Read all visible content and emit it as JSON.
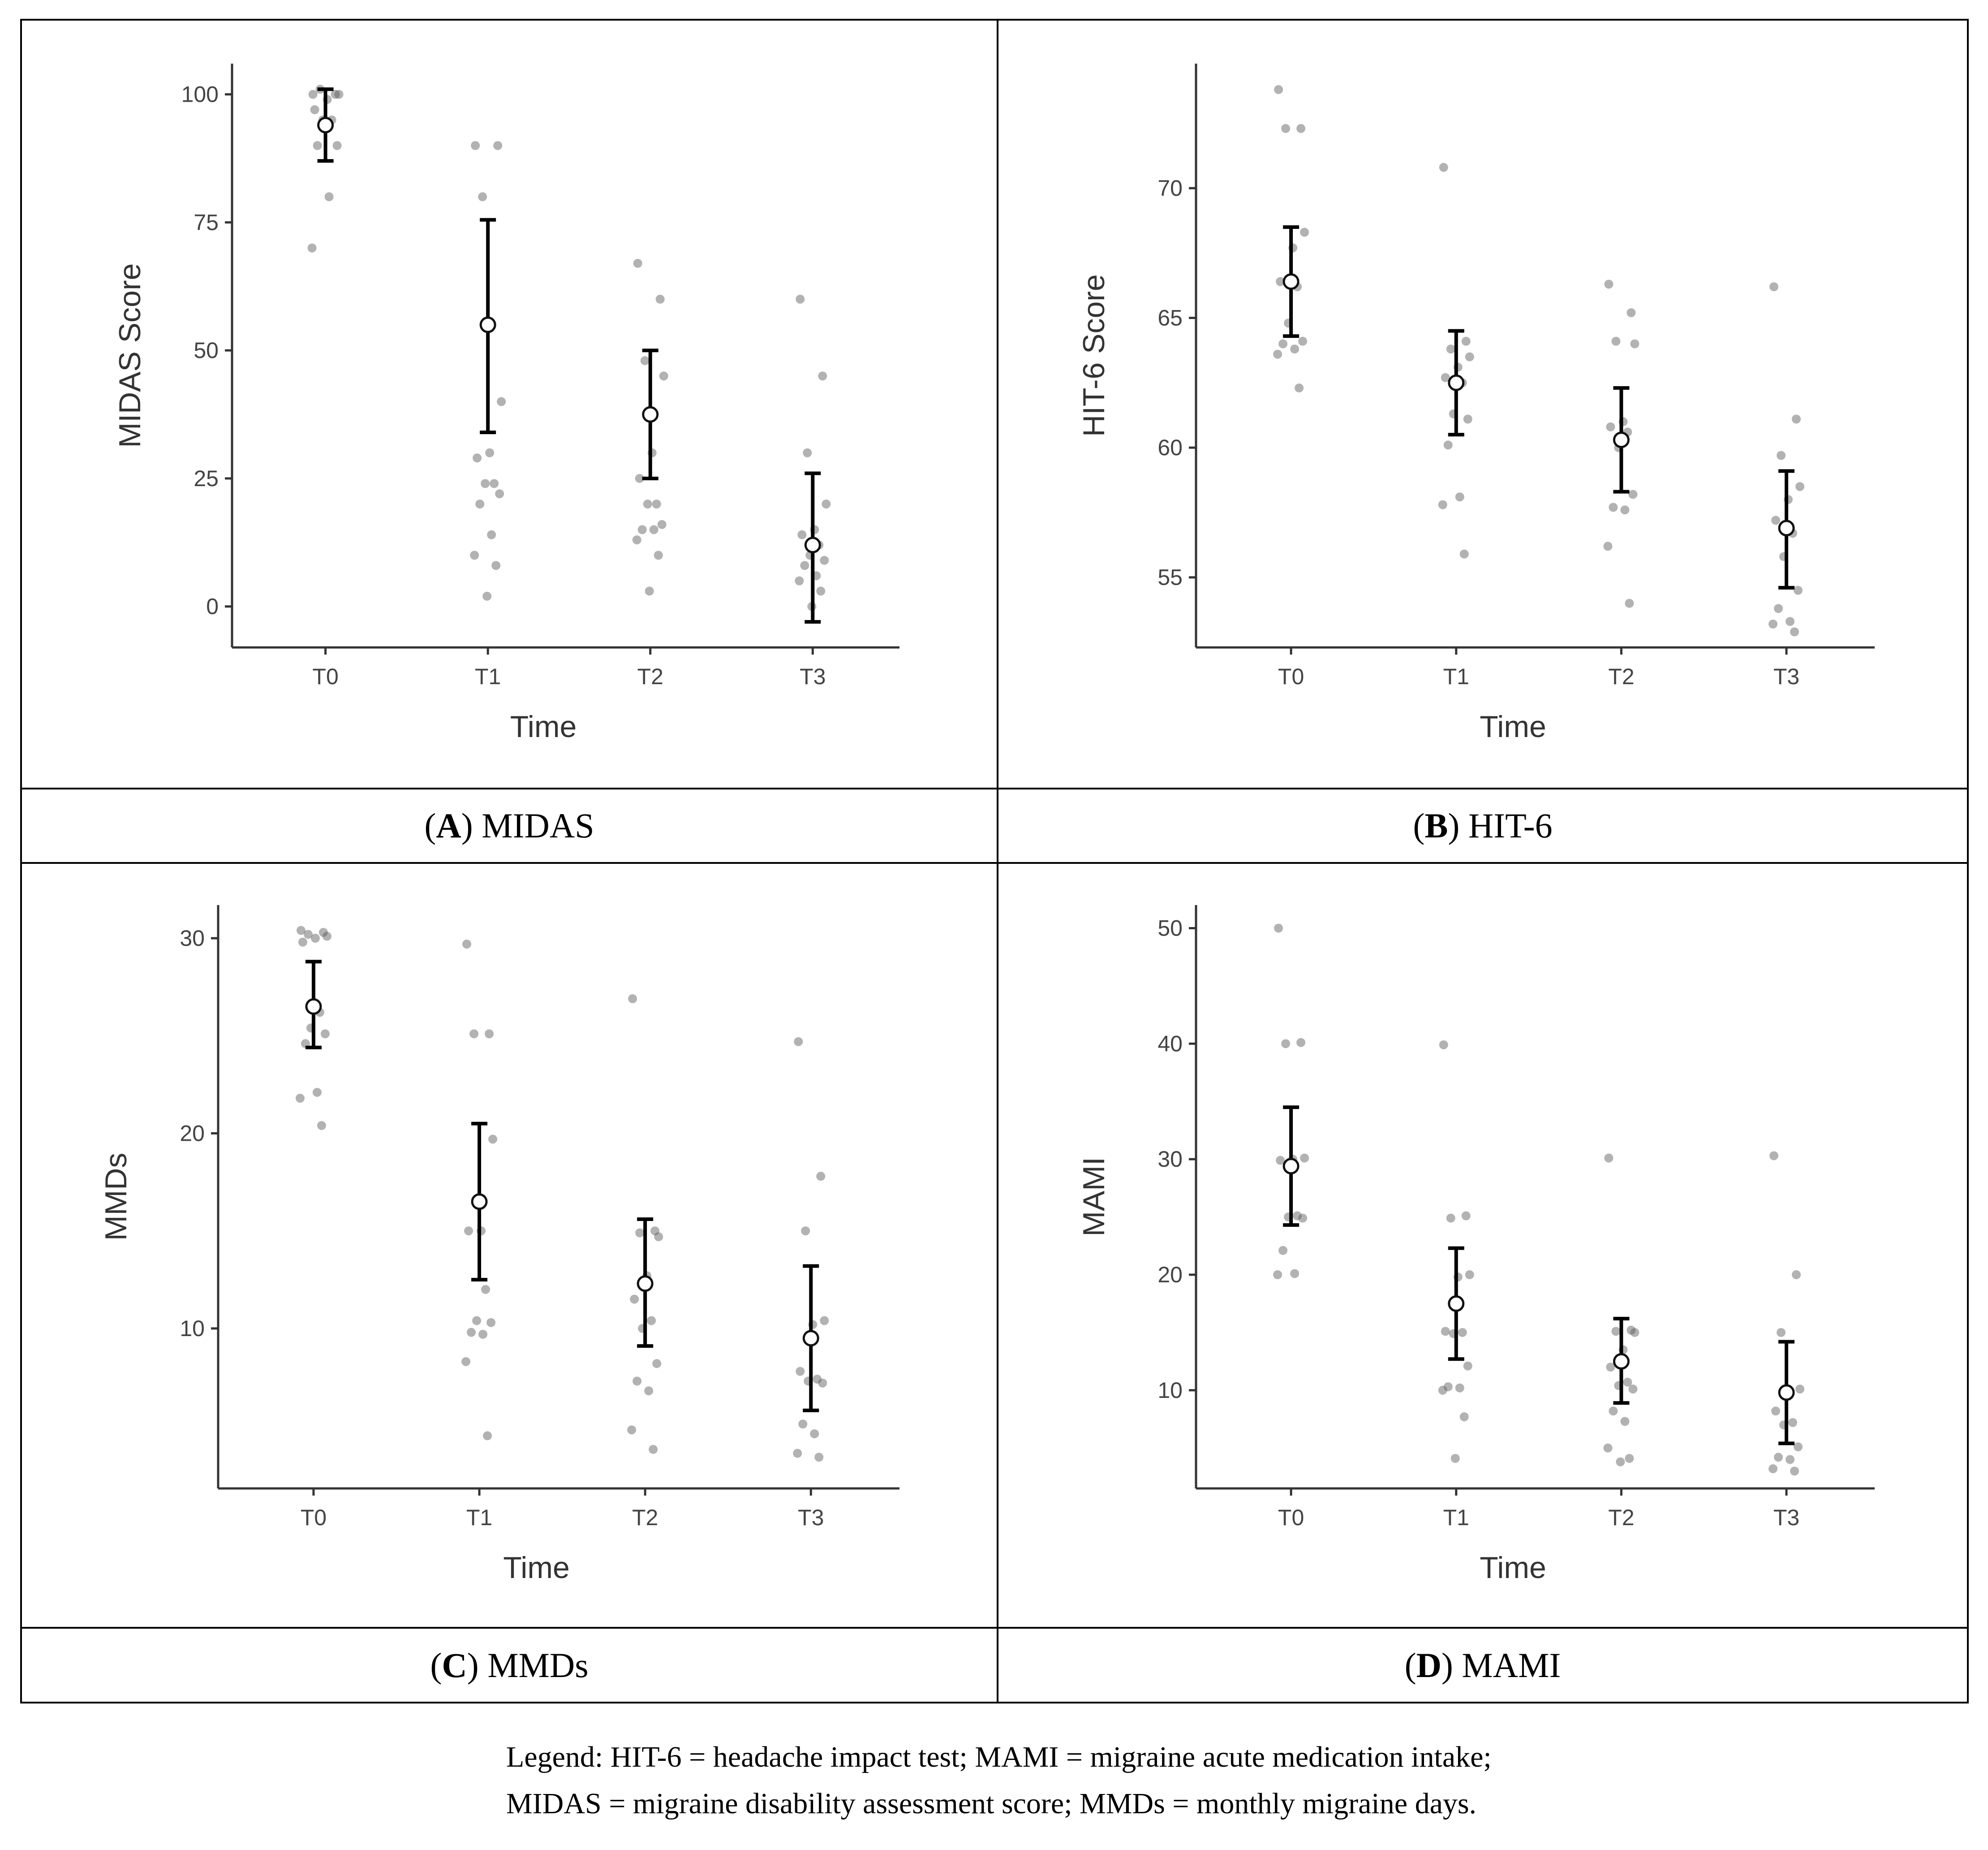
{
  "chart_data": [
    {
      "type": "scatter",
      "panel": "A",
      "caption_letter": "A",
      "caption_text": "MIDAS",
      "xlabel": "Time",
      "ylabel": "MIDAS Score",
      "categories": [
        "T0",
        "T1",
        "T2",
        "T3"
      ],
      "yticks": [
        "0",
        "25",
        "50",
        "75",
        "100"
      ],
      "ylim": [
        -8,
        106
      ],
      "means": [
        94,
        55,
        37.5,
        12
      ],
      "ci_low": [
        87,
        34,
        25,
        -3
      ],
      "ci_high": [
        101,
        75.5,
        50,
        26
      ],
      "points": [
        [
          100,
          100,
          101,
          100,
          99,
          97,
          95,
          95,
          90,
          90,
          80,
          70
        ],
        [
          90,
          90,
          80,
          40,
          30,
          29,
          24,
          24,
          22,
          20,
          14,
          10,
          8,
          2
        ],
        [
          67,
          60,
          48,
          45,
          30,
          25,
          20,
          20,
          16,
          15,
          15,
          13,
          10,
          3
        ],
        [
          60,
          45,
          30,
          20,
          15,
          14,
          12,
          10,
          9,
          8,
          6,
          5,
          3,
          0
        ]
      ]
    },
    {
      "type": "scatter",
      "panel": "B",
      "caption_letter": "B",
      "caption_text": "HIT-6",
      "xlabel": "Time",
      "ylabel": "HIT-6 Score",
      "categories": [
        "T0",
        "T1",
        "T2",
        "T3"
      ],
      "yticks": [
        "55",
        "60",
        "65",
        "70"
      ],
      "ylim": [
        52.3,
        74.8
      ],
      "means": [
        66.4,
        62.5,
        60.3,
        56.9
      ],
      "ci_low": [
        64.3,
        60.5,
        58.3,
        54.6
      ],
      "ci_high": [
        68.5,
        64.5,
        62.3,
        59.1
      ],
      "points": [
        [
          73.8,
          72.3,
          72.3,
          68.3,
          67.7,
          66.4,
          66.2,
          64.8,
          64.1,
          64.0,
          63.8,
          63.6,
          62.3
        ],
        [
          70.8,
          64.1,
          63.8,
          63.5,
          63.1,
          62.7,
          62.5,
          61.3,
          61.1,
          60.1,
          58.1,
          57.8,
          55.9
        ],
        [
          66.3,
          65.2,
          64.1,
          64.0,
          61.0,
          60.8,
          60.6,
          60.0,
          58.2,
          57.7,
          57.6,
          56.2,
          54.0
        ],
        [
          66.2,
          61.1,
          59.7,
          58.5,
          58.0,
          57.2,
          56.7,
          55.8,
          54.5,
          53.8,
          53.3,
          53.2,
          52.9
        ]
      ]
    },
    {
      "type": "scatter",
      "panel": "C",
      "caption_letter": "C",
      "caption_text": "MMDs",
      "xlabel": "Time",
      "ylabel": "MMDs",
      "categories": [
        "T0",
        "T1",
        "T2",
        "T3"
      ],
      "yticks": [
        "10",
        "20",
        "30"
      ],
      "ylim": [
        1.8,
        31.7
      ],
      "means": [
        26.5,
        16.5,
        12.3,
        9.5
      ],
      "ci_low": [
        24.4,
        12.5,
        9.1,
        5.8
      ],
      "ci_high": [
        28.8,
        20.5,
        15.6,
        13.2
      ],
      "points": [
        [
          30.4,
          30.3,
          30.2,
          30.1,
          30.0,
          29.8,
          26.2,
          25.4,
          25.1,
          24.6,
          22.1,
          21.8,
          20.4
        ],
        [
          29.7,
          25.1,
          25.1,
          19.7,
          15.0,
          15.0,
          12.0,
          10.4,
          10.3,
          9.8,
          9.7,
          8.3,
          4.5
        ],
        [
          26.9,
          15.0,
          14.9,
          14.7,
          12.7,
          11.5,
          10.4,
          10.0,
          8.2,
          7.3,
          6.8,
          4.8,
          3.8
        ],
        [
          24.7,
          17.8,
          15.0,
          10.4,
          10.2,
          7.8,
          7.4,
          7.3,
          7.2,
          5.1,
          4.6,
          3.6,
          3.4
        ]
      ]
    },
    {
      "type": "scatter",
      "panel": "D",
      "caption_letter": "D",
      "caption_text": "MAMI",
      "xlabel": "Time",
      "ylabel": "MAMI",
      "categories": [
        "T0",
        "T1",
        "T2",
        "T3"
      ],
      "yticks": [
        "10",
        "20",
        "30",
        "40",
        "50"
      ],
      "ylim": [
        1.5,
        52
      ],
      "means": [
        29.4,
        17.5,
        12.5,
        9.8
      ],
      "ci_low": [
        24.3,
        12.7,
        8.9,
        5.4
      ],
      "ci_high": [
        34.5,
        22.3,
        16.2,
        14.2
      ],
      "points": [
        [
          50.0,
          40.1,
          40.0,
          30.1,
          30.0,
          29.9,
          25.1,
          25.0,
          24.9,
          22.1,
          20.1,
          20.0
        ],
        [
          39.9,
          25.1,
          24.9,
          20.0,
          19.8,
          15.1,
          15.0,
          14.9,
          12.1,
          10.3,
          10.2,
          10.0,
          7.7,
          4.1
        ],
        [
          30.1,
          15.2,
          15.1,
          15.0,
          13.5,
          12.0,
          10.7,
          10.4,
          10.1,
          8.2,
          7.3,
          5.0,
          4.1,
          3.8
        ],
        [
          30.3,
          20.0,
          15.0,
          10.1,
          9.8,
          8.2,
          7.2,
          7.0,
          5.1,
          4.2,
          4.0,
          3.2,
          3.0
        ]
      ]
    }
  ],
  "legend": {
    "line1": "Legend: HIT-6 = headache impact test; MAMI = migraine acute medication intake;",
    "line2": "MIDAS = migraine disability assessment score; MMDs = monthly migraine days."
  }
}
